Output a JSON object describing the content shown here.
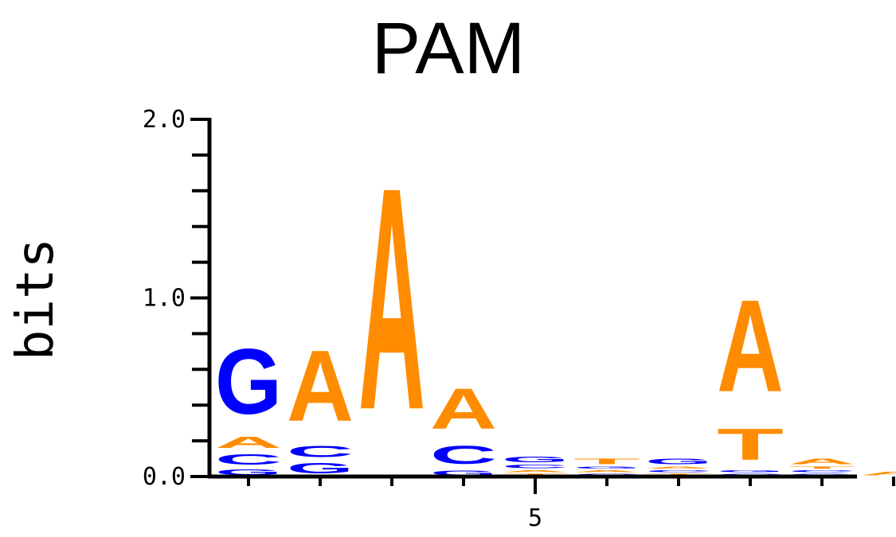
{
  "chart_data": {
    "type": "sequence_logo",
    "title": "PAM",
    "ylabel": "bits",
    "xlabel": "",
    "ylim": [
      0,
      2.0
    ],
    "y_ticks": [
      {
        "value": 0.0,
        "label": "0.0"
      },
      {
        "value": 1.0,
        "label": "1.0"
      },
      {
        "value": 2.0,
        "label": "2.0"
      }
    ],
    "x_tick_labels": [
      {
        "position": 5,
        "label": "5"
      }
    ],
    "colors": {
      "A": "#ff8c00",
      "T": "#ff8c00",
      "G": "#0000ff",
      "C": "#0000ff"
    },
    "positions": [
      {
        "position": 1,
        "stack": [
          {
            "letter": "G",
            "bits": 0.05
          },
          {
            "letter": "C",
            "bits": 0.09
          },
          {
            "letter": "A",
            "bits": 0.1
          },
          {
            "letter": "G",
            "bits": 0.58
          }
        ]
      },
      {
        "position": 2,
        "stack": [
          {
            "letter": "G",
            "bits": 0.09
          },
          {
            "letter": "C",
            "bits": 0.1
          },
          {
            "letter": "A",
            "bits": 0.63
          }
        ]
      },
      {
        "position": 3,
        "stack": [
          {
            "letter": "A",
            "bits": 1.98
          }
        ]
      },
      {
        "position": 4,
        "stack": [
          {
            "letter": "G",
            "bits": 0.04
          },
          {
            "letter": "C",
            "bits": 0.16
          },
          {
            "letter": "A",
            "bits": 0.36
          }
        ]
      },
      {
        "position": 5,
        "stack": [
          {
            "letter": "T",
            "bits": 0.02
          },
          {
            "letter": "A",
            "bits": 0.02
          },
          {
            "letter": "C",
            "bits": 0.03
          },
          {
            "letter": "G",
            "bits": 0.05
          }
        ]
      },
      {
        "position": 6,
        "stack": [
          {
            "letter": "C",
            "bits": 0.02
          },
          {
            "letter": "A",
            "bits": 0.02
          },
          {
            "letter": "G",
            "bits": 0.02
          },
          {
            "letter": "T",
            "bits": 0.05
          }
        ]
      },
      {
        "position": 7,
        "stack": [
          {
            "letter": "T",
            "bits": 0.02
          },
          {
            "letter": "C",
            "bits": 0.02
          },
          {
            "letter": "A",
            "bits": 0.02
          },
          {
            "letter": "G",
            "bits": 0.05
          }
        ]
      },
      {
        "position": 8,
        "stack": [
          {
            "letter": "C",
            "bits": 0.02
          },
          {
            "letter": "G",
            "bits": 0.02
          },
          {
            "letter": "T",
            "bits": 0.28
          },
          {
            "letter": "A",
            "bits": 0.82
          }
        ]
      },
      {
        "position": 9,
        "stack": [
          {
            "letter": "G",
            "bits": 0.02
          },
          {
            "letter": "C",
            "bits": 0.02
          },
          {
            "letter": "T",
            "bits": 0.02
          },
          {
            "letter": "A",
            "bits": 0.05
          }
        ]
      },
      {
        "position": 10,
        "stack": [
          {
            "letter": "A",
            "bits": 0.03
          }
        ]
      }
    ]
  }
}
